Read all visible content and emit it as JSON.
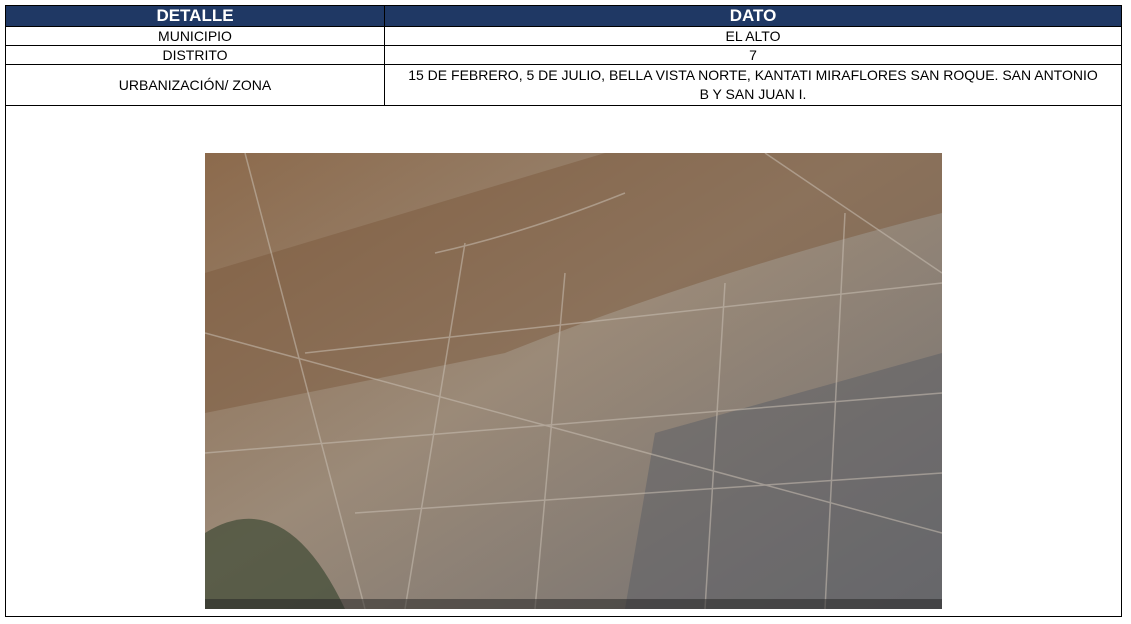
{
  "table": {
    "header": [
      "DETALLE",
      "DATO"
    ],
    "rows": [
      [
        "MUNICIPIO",
        "EL ALTO"
      ],
      [
        "DISTRITO",
        "7"
      ],
      [
        "URBANIZACIÓN/ ZONA",
        "15 DE FEBRERO, 5 DE JULIO, BELLA VISTA NORTE, KANTATI MIRAFLORES SAN ROQUE. SAN ANTONIO B Y SAN JUAN I."
      ]
    ]
  }
}
